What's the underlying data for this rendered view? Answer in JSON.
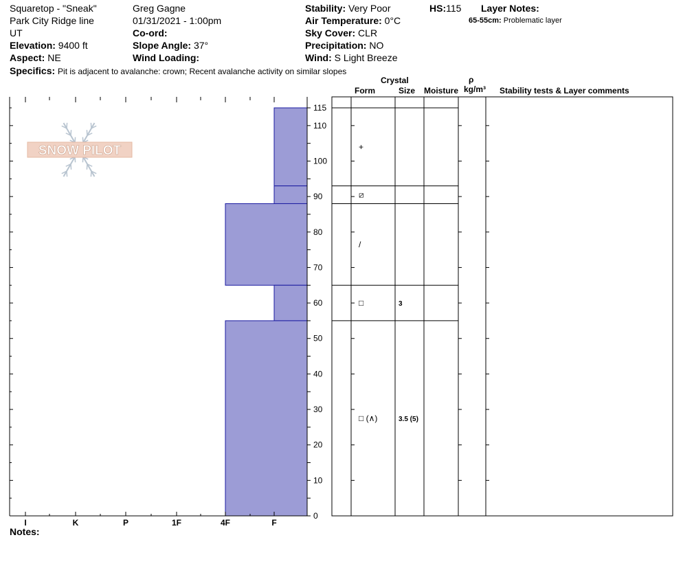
{
  "header": {
    "location": "Squaretop - \"Sneak\"",
    "area": "Park City Ridge line",
    "state": "UT",
    "elevation_label": "Elevation:",
    "elevation_value": "9400 ft",
    "aspect_label": "Aspect:",
    "aspect_value": "NE",
    "observer": "Greg Gagne",
    "datetime": "01/31/2021 - 1:00pm",
    "coord_label": "Co-ord:",
    "slope_label": "Slope Angle:",
    "slope_value": "37°",
    "wind_loading_label": "Wind Loading:",
    "stability_label": "Stability:",
    "stability_value": "Very Poor",
    "air_temp_label": "Air Temperature:",
    "air_temp_value": "0°C",
    "sky_label": "Sky Cover:",
    "sky_value": "CLR",
    "precip_label": "Precipitation:",
    "precip_value": "NO",
    "wind_label": "Wind:",
    "wind_value": "S Light Breeze",
    "hs_label": "HS:",
    "hs_value": "115",
    "layer_notes_label": "Layer Notes:",
    "layer_note_range": "65-55cm:",
    "layer_note_text": "Problematic layer",
    "specifics_label": "Specifics:",
    "specifics_value": "Pit is adjacent to avalanche: crown; Recent avalanche activity on similar slopes",
    "notes_label": "Notes:"
  },
  "logo": {
    "text": "SNOW PILOT"
  },
  "columns": {
    "crystal": "Crystal",
    "form": "Form",
    "size": "Size",
    "moisture": "Moisture",
    "rho": "ρ",
    "density_unit": "kg/m³",
    "stability_comments": "Stability tests & Layer comments"
  },
  "colors": {
    "layer_fill": "#9c9cd6",
    "layer_stroke": "#1a1aa0"
  },
  "chart_data": {
    "type": "bar",
    "orientation": "horizontal",
    "x_categories": [
      "I",
      "K",
      "P",
      "1F",
      "4F",
      "F"
    ],
    "y_ticks": [
      0,
      10,
      20,
      30,
      40,
      50,
      60,
      70,
      80,
      90,
      100,
      110,
      115
    ],
    "ylim": [
      0,
      115
    ],
    "layers": [
      {
        "top": 115,
        "bottom": 93,
        "hardness": "F",
        "form": "+",
        "size": ""
      },
      {
        "top": 93,
        "bottom": 88,
        "hardness": "F",
        "form": "⧄",
        "size": ""
      },
      {
        "top": 88,
        "bottom": 65,
        "hardness": "4F",
        "form": "/",
        "size": ""
      },
      {
        "top": 65,
        "bottom": 55,
        "hardness": "F",
        "form": "□",
        "size": "3"
      },
      {
        "top": 55,
        "bottom": 0,
        "hardness": "4F",
        "form": "□ (∧)",
        "size": "3.5 (5)"
      }
    ]
  }
}
